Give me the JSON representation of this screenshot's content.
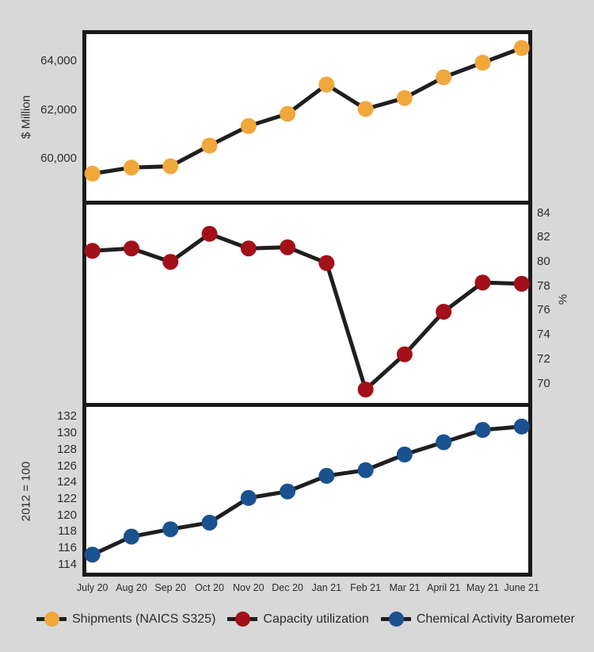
{
  "chart_data": {
    "type": "line",
    "categories": [
      "July 20",
      "Aug 20",
      "Sep 20",
      "Oct 20",
      "Nov 20",
      "Dec 20",
      "Jan 21",
      "Feb 21",
      "Mar 21",
      "April 21",
      "May 21",
      "June 21"
    ],
    "line_color": "#201E1E",
    "background_color": "#D8D8D8",
    "panels": [
      {
        "id": "shipments",
        "name": "Shipments (NAICS S325)",
        "ylabel": "$ Million",
        "yaxis_side": "left",
        "values": [
          59400,
          59650,
          59700,
          60550,
          61350,
          61850,
          63050,
          62050,
          62500,
          63350,
          63950,
          64550
        ],
        "ylim": [
          58290,
          65120
        ],
        "yticks": [
          {
            "v": 64000,
            "label": "64,000"
          },
          {
            "v": 62000,
            "label": "62,000"
          },
          {
            "v": 60000,
            "label": "60,000"
          }
        ],
        "color": "#F0A73C"
      },
      {
        "id": "capacity-utilization",
        "name": "Capacity utilization",
        "ylabel": "%",
        "yaxis_side": "right",
        "values": [
          80.9,
          81.1,
          80.0,
          82.3,
          81.1,
          81.2,
          79.9,
          69.5,
          72.4,
          75.9,
          78.3,
          78.2
        ],
        "ylim": [
          68.4,
          84.7
        ],
        "yticks": [
          {
            "v": 84,
            "label": "84"
          },
          {
            "v": 82,
            "label": "82"
          },
          {
            "v": 80,
            "label": "80"
          },
          {
            "v": 78,
            "label": "78"
          },
          {
            "v": 76,
            "label": "76"
          },
          {
            "v": 74,
            "label": "74"
          },
          {
            "v": 72,
            "label": "72"
          },
          {
            "v": 70,
            "label": "70"
          }
        ],
        "color": "#A21019"
      },
      {
        "id": "chemical-activity-barometer",
        "name": "Chemical Activity Barometer",
        "ylabel": "2012 = 100",
        "yaxis_side": "left",
        "values": [
          115.2,
          117.4,
          118.3,
          119.1,
          122.1,
          122.9,
          124.8,
          125.5,
          127.4,
          128.9,
          130.4,
          130.8
        ],
        "ylim": [
          113.0,
          133.2
        ],
        "yticks": [
          {
            "v": 132,
            "label": "132"
          },
          {
            "v": 130,
            "label": "130"
          },
          {
            "v": 128,
            "label": "128"
          },
          {
            "v": 126,
            "label": "126"
          },
          {
            "v": 124,
            "label": "124"
          },
          {
            "v": 122,
            "label": "122"
          },
          {
            "v": 120,
            "label": "120"
          },
          {
            "v": 118,
            "label": "118"
          },
          {
            "v": 116,
            "label": "116"
          },
          {
            "v": 114,
            "label": "114"
          }
        ],
        "color": "#1A518F"
      }
    ],
    "legend": [
      {
        "label": "Shipments (NAICS S325)",
        "color": "#F0A73C"
      },
      {
        "label": "Capacity utilization",
        "color": "#A21019"
      },
      {
        "label": "Chemical Activity Barometer",
        "color": "#1A518F"
      }
    ]
  }
}
